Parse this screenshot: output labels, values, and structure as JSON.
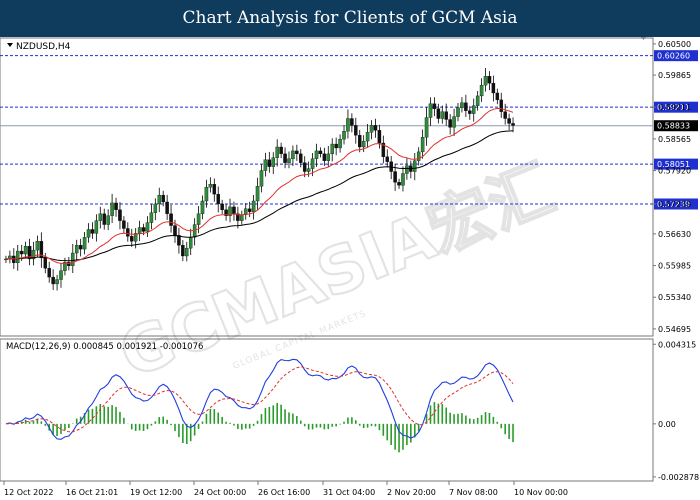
{
  "header": {
    "title": "Chart Analysis for Clients of GCM Asia"
  },
  "watermark": {
    "text": "GCMASIA宏汇",
    "subtext": "GLOBAL CAPITAL MARKETS"
  },
  "chart_data": {
    "type": "candlestick",
    "symbol": "NZDUSD,H4",
    "price_axis": {
      "ylim": [
        0.5455,
        0.6062
      ],
      "ticks": [
        "0.60500",
        "0.59865",
        "0.59211",
        "0.58565",
        "0.57920",
        "0.57239",
        "0.56630",
        "0.55985",
        "0.55340",
        "0.54695"
      ]
    },
    "horizontal_levels": [
      {
        "value": 0.6026,
        "label": "0.60260",
        "style": "dashed",
        "color": "#1f2fd0"
      },
      {
        "value": 0.59211,
        "label": "0.59211",
        "style": "dashed",
        "color": "#1f2fd0"
      },
      {
        "value": 0.58051,
        "label": "0.58051",
        "style": "dashed",
        "color": "#1f2fd0"
      },
      {
        "value": 0.57239,
        "label": "0.57239",
        "style": "dashed",
        "color": "#1f2fd0"
      }
    ],
    "current_price": {
      "value": 0.58833,
      "label": "0.58833"
    },
    "x_ticks": [
      "12 Oct 2022",
      "16 Oct 21:01",
      "19 Oct 12:00",
      "24 Oct 00:00",
      "26 Oct 16:00",
      "31 Oct 04:00",
      "2 Nov 20:00",
      "7 Nov 08:00",
      "10 Nov 00:00"
    ],
    "candles_start_price": 0.561,
    "candles_close": [
      0.5612,
      0.5618,
      0.5604,
      0.5628,
      0.5622,
      0.5638,
      0.5612,
      0.563,
      0.5648,
      0.5614,
      0.5593,
      0.5575,
      0.5561,
      0.557,
      0.5588,
      0.5605,
      0.5598,
      0.5624,
      0.564,
      0.5632,
      0.5656,
      0.5672,
      0.5664,
      0.569,
      0.5704,
      0.5682,
      0.57,
      0.5726,
      0.5712,
      0.569,
      0.5674,
      0.5658,
      0.5648,
      0.5664,
      0.5676,
      0.5668,
      0.5686,
      0.5706,
      0.5724,
      0.5742,
      0.5728,
      0.5704,
      0.568,
      0.566,
      0.564,
      0.5618,
      0.5634,
      0.5656,
      0.5682,
      0.5704,
      0.573,
      0.5758,
      0.5764,
      0.5744,
      0.5724,
      0.5712,
      0.57,
      0.5718,
      0.5704,
      0.569,
      0.5702,
      0.5714,
      0.5708,
      0.573,
      0.576,
      0.5792,
      0.5814,
      0.58,
      0.5818,
      0.584,
      0.5826,
      0.5808,
      0.5816,
      0.5832,
      0.5826,
      0.5808,
      0.579,
      0.5796,
      0.5816,
      0.5832,
      0.5826,
      0.5812,
      0.5826,
      0.5846,
      0.5838,
      0.5856,
      0.5872,
      0.5898,
      0.5884,
      0.5864,
      0.584,
      0.5852,
      0.587,
      0.5884,
      0.5874,
      0.5848,
      0.582,
      0.581,
      0.579,
      0.5768,
      0.5762,
      0.5786,
      0.5802,
      0.579,
      0.5812,
      0.583,
      0.586,
      0.59,
      0.5928,
      0.5918,
      0.5898,
      0.5912,
      0.5896,
      0.588,
      0.5902,
      0.592,
      0.593,
      0.5914,
      0.5908,
      0.5924,
      0.5944,
      0.5966,
      0.5984,
      0.597,
      0.595,
      0.5936,
      0.5912,
      0.5898,
      0.5888,
      0.5884
    ],
    "ema_short": {
      "name": "",
      "color": "#e0302c",
      "period": 20
    },
    "ema_long": {
      "name": "",
      "color": "#000000",
      "period": 50
    },
    "macd": {
      "label": "MACD(12,26,9) 0.000845 0.001921 -0.001076",
      "ticks": [
        "0.004315",
        "0.00",
        "-0.002878"
      ],
      "ylim": [
        -0.0031,
        0.0046
      ],
      "macd_color": "#1f3fe0",
      "signal_color": "#e0302c",
      "hist_color": "#2a9b2a"
    }
  }
}
